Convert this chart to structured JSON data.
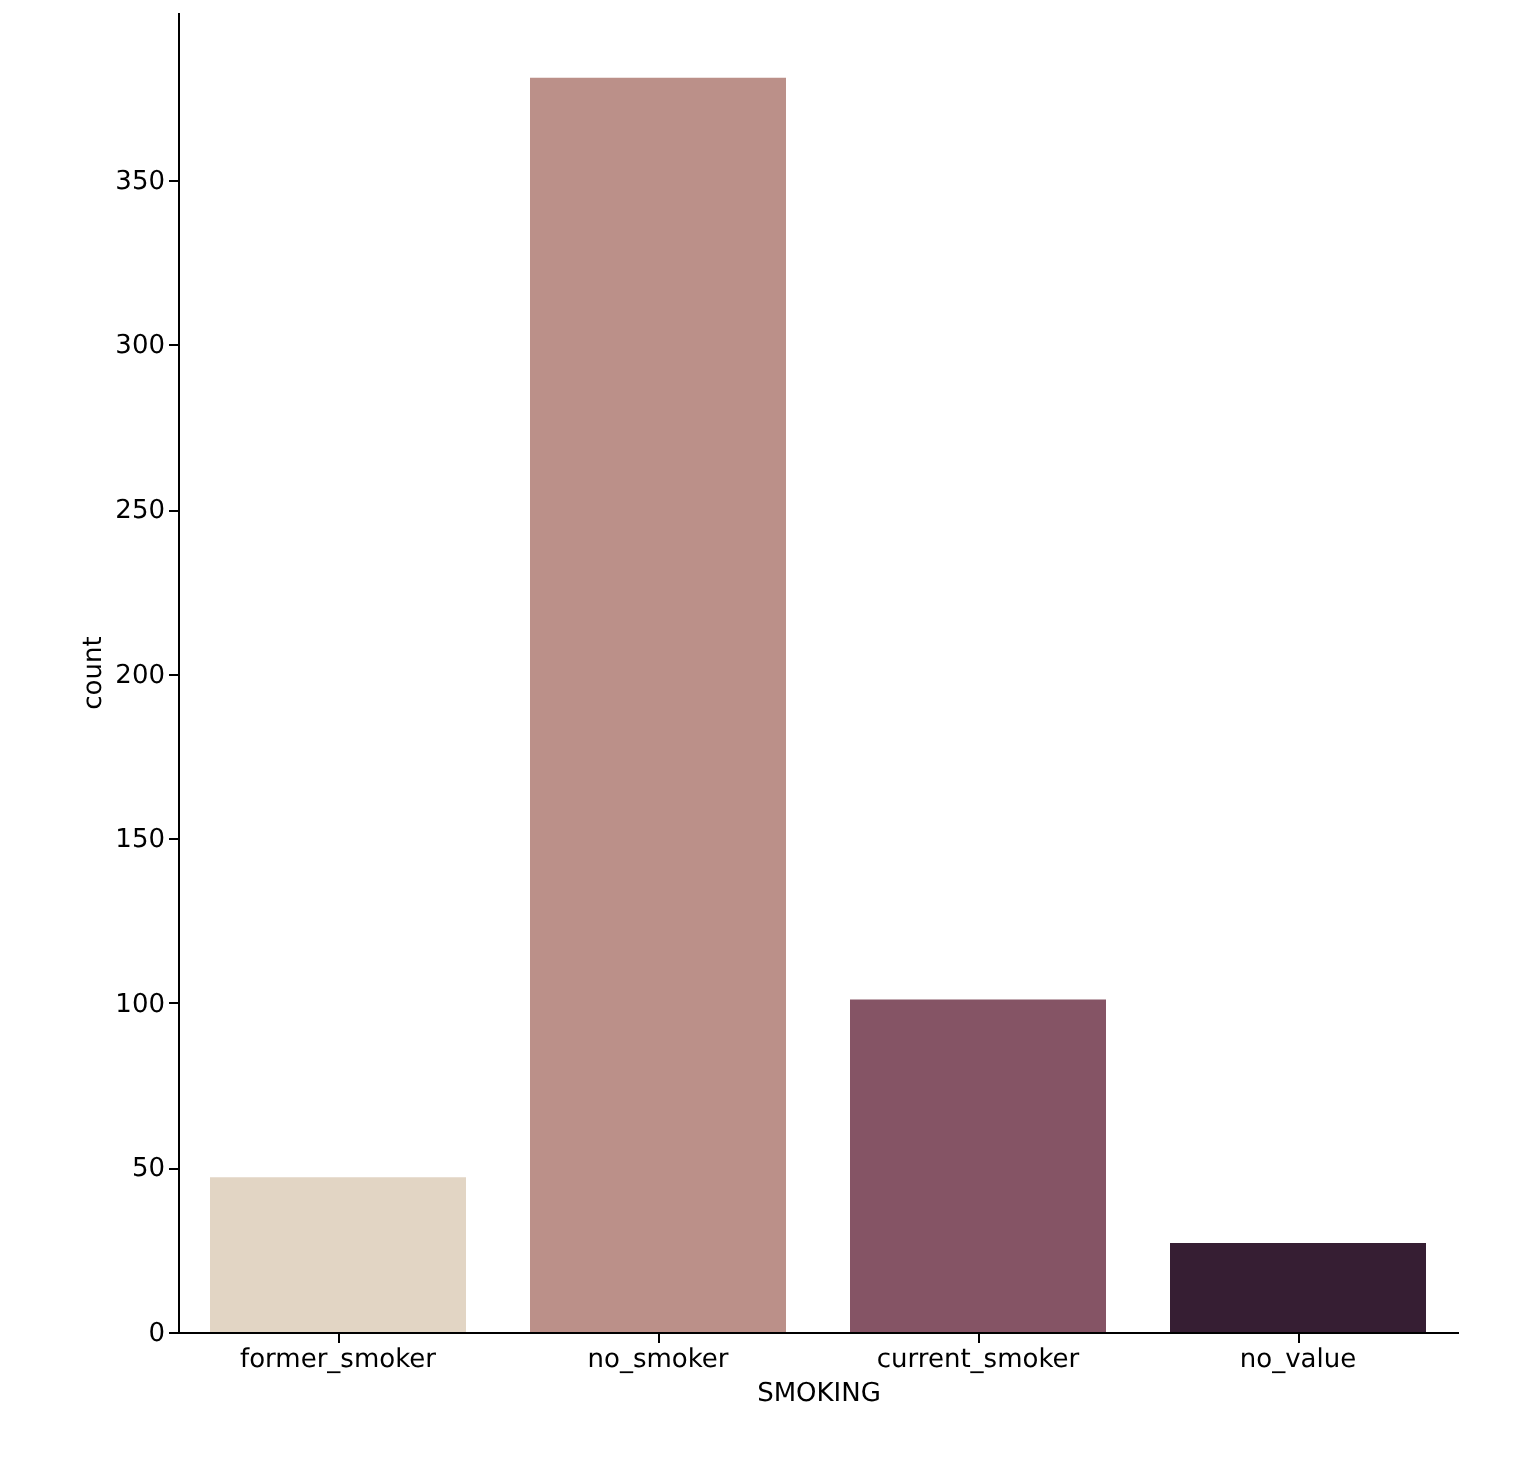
{
  "chart_data": {
    "type": "bar",
    "xlabel": "SMOKING",
    "ylabel": "count",
    "categories": [
      "former_smoker",
      "no_smoker",
      "current_smoker",
      "no_value"
    ],
    "values": [
      47,
      381,
      101,
      27
    ],
    "colors": [
      "#e2d5c4",
      "#bb9089",
      "#855465",
      "#361e33"
    ],
    "ylim": [
      0,
      401
    ],
    "yticks": [
      0,
      50,
      100,
      150,
      200,
      250,
      300,
      350
    ],
    "grid": false
  }
}
